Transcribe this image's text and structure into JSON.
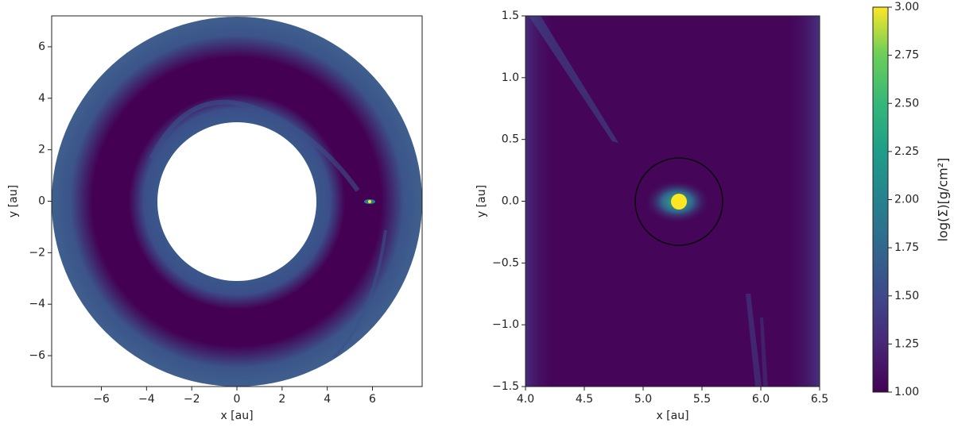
{
  "chart_data": [
    {
      "type": "heatmap",
      "xlabel": "x [au]",
      "ylabel": "y [au]",
      "xlim": [
        -8.2,
        8.2
      ],
      "ylim": [
        -7.2,
        7.2
      ],
      "xticks": [
        {
          "value": -6,
          "label": "−6"
        },
        {
          "value": -4,
          "label": "−4"
        },
        {
          "value": -2,
          "label": "−2"
        },
        0,
        2,
        4,
        6
      ],
      "yticks": [
        {
          "value": -6,
          "label": "−6"
        },
        {
          "value": -4,
          "label": "−4"
        },
        {
          "value": -2,
          "label": "−2"
        },
        0,
        2,
        4,
        6
      ]
    },
    {
      "type": "heatmap",
      "xlabel": "x [au]",
      "ylabel": "y [au]",
      "xlim": [
        4.0,
        6.5
      ],
      "ylim": [
        -1.5,
        1.5
      ],
      "xticks": [
        {
          "value": 4.0,
          "label": "4.0"
        },
        {
          "value": 4.5,
          "label": "4.5"
        },
        {
          "value": 5.0,
          "label": "5.0"
        },
        {
          "value": 5.5,
          "label": "5.5"
        },
        {
          "value": 6.0,
          "label": "6.0"
        },
        {
          "value": 6.5,
          "label": "6.5"
        }
      ],
      "yticks": [
        {
          "value": -1.5,
          "label": "−1.5"
        },
        {
          "value": -1.0,
          "label": "−1.0"
        },
        {
          "value": -0.5,
          "label": "−0.5"
        },
        {
          "value": 0.0,
          "label": "0.0"
        },
        {
          "value": 0.5,
          "label": "0.5"
        },
        {
          "value": 1.0,
          "label": "1.0"
        },
        {
          "value": 1.5,
          "label": "1.5"
        }
      ]
    },
    {
      "type": "colorbar",
      "label": "log(Σ)[g/cm²]",
      "ylim": [
        1.0,
        3.0
      ],
      "yticks": [
        {
          "value": 1.0,
          "label": "1.00"
        },
        {
          "value": 1.25,
          "label": "1.25"
        },
        {
          "value": 1.5,
          "label": "1.50"
        },
        {
          "value": 1.75,
          "label": "1.75"
        },
        {
          "value": 2.0,
          "label": "2.00"
        },
        {
          "value": 2.25,
          "label": "2.25"
        },
        {
          "value": 2.5,
          "label": "2.50"
        },
        {
          "value": 2.75,
          "label": "2.75"
        },
        {
          "value": 3.0,
          "label": "3.00"
        }
      ]
    }
  ]
}
